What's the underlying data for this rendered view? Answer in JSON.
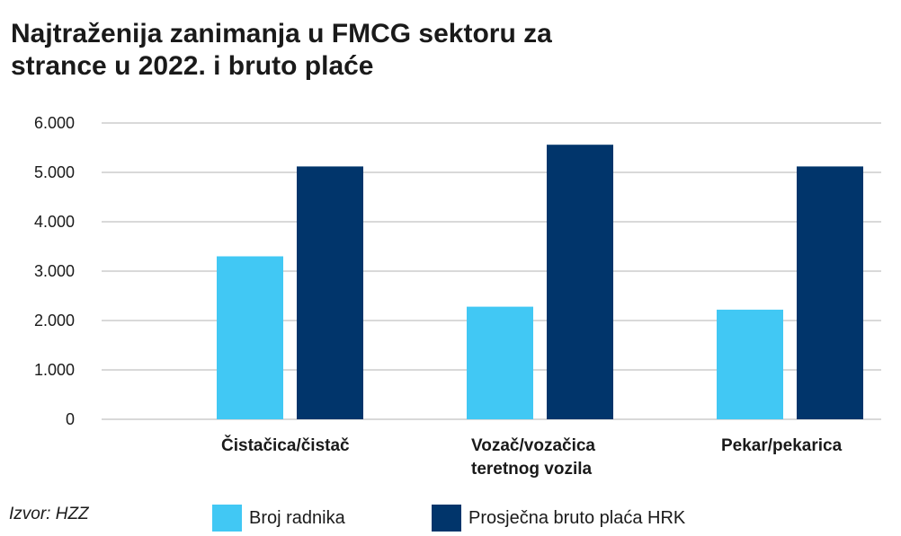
{
  "title_lines": [
    "Najtraženija zanimanja u FMCG sektoru za",
    "strance u 2022. i bruto plaće"
  ],
  "source": "Izvor: HZZ",
  "colors": {
    "series1": "#41c8f4",
    "series2": "#01356b",
    "grid": "#b3b3b3"
  },
  "chart_data": {
    "type": "bar",
    "categories": [
      [
        "Čistačica/čistač"
      ],
      [
        "Vozač/vozačica",
        "teretnog vozila"
      ],
      [
        "Pekar/pekarica"
      ]
    ],
    "series": [
      {
        "name": "Broj radnika",
        "values": [
          3300,
          2280,
          2220
        ]
      },
      {
        "name": "Prosječna bruto plaća HRK",
        "values": [
          5120,
          5560,
          5120
        ]
      }
    ],
    "ylim": [
      0,
      6000
    ],
    "yticks": [
      "0",
      "1.000",
      "2.000",
      "3.000",
      "4.000",
      "5.000",
      "6.000"
    ],
    "grid": true,
    "legend": "bottom"
  }
}
